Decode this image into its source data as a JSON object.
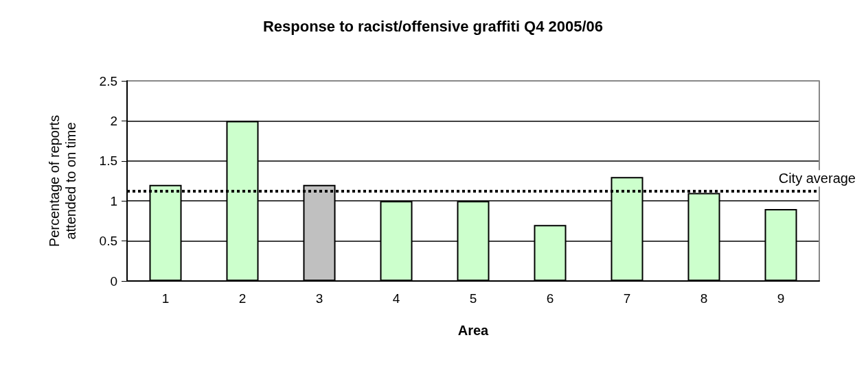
{
  "chart_data": {
    "type": "bar",
    "title": "Response to racist/offensive graffiti Q4 2005/06",
    "xlabel": "Area",
    "ylabel": "Percentage of reports\nattended to on time",
    "categories": [
      "1",
      "2",
      "3",
      "4",
      "5",
      "6",
      "7",
      "8",
      "9"
    ],
    "values": [
      1.2,
      2,
      1.2,
      1,
      1,
      0.7,
      1.3,
      1.1,
      0.9
    ],
    "colors": [
      "#ccffcc",
      "#ccffcc",
      "#c0c0c0",
      "#ccffcc",
      "#ccffcc",
      "#ccffcc",
      "#ccffcc",
      "#ccffcc",
      "#ccffcc"
    ],
    "ylim": [
      0,
      2.5
    ],
    "yticks": [
      0,
      0.5,
      1,
      1.5,
      2,
      2.5
    ],
    "grid": "y",
    "ref_lines": [
      {
        "axis": "y",
        "value": 1.12,
        "label": "City average",
        "color": "#000000",
        "line_style": "dotted"
      }
    ]
  }
}
